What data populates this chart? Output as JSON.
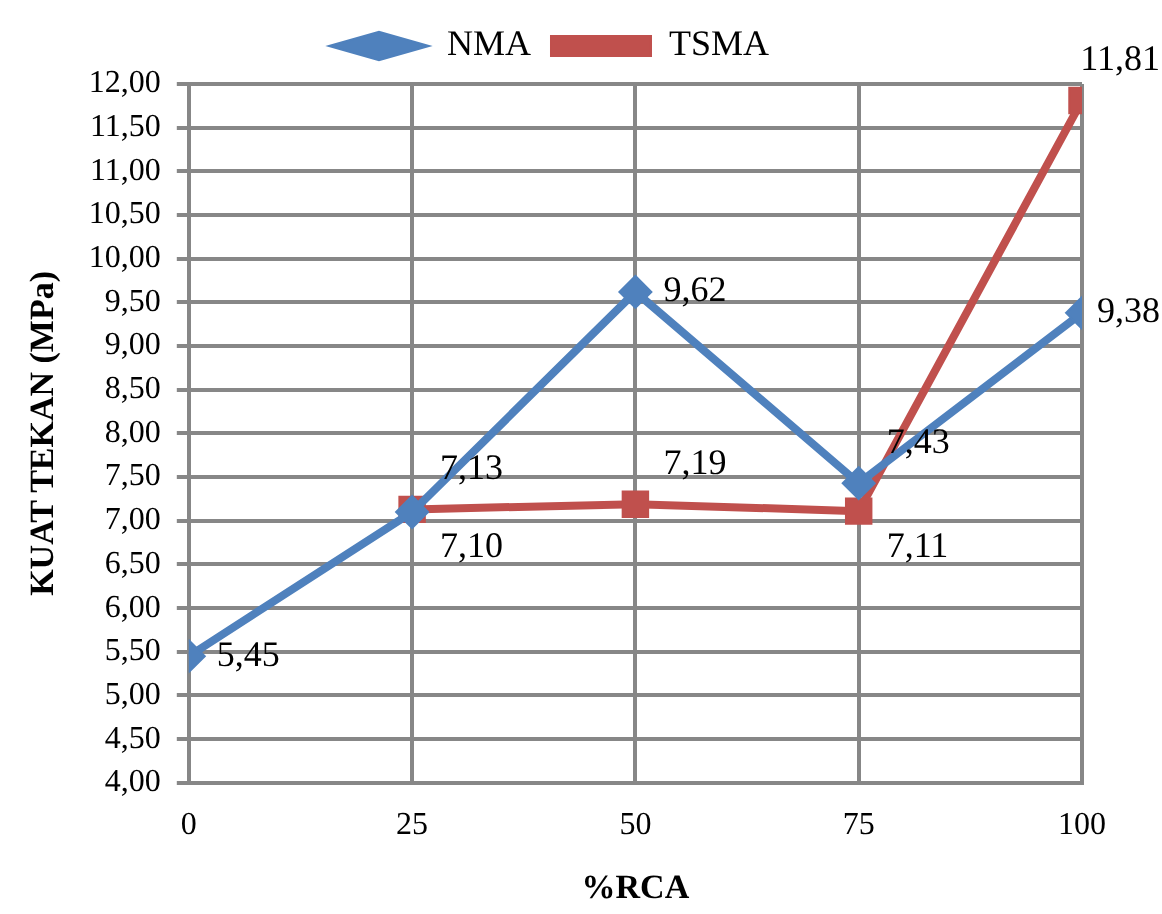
{
  "chart_data": {
    "type": "line",
    "xlabel": "%RCA",
    "ylabel": "KUAT TEKAN (MPa)",
    "x": [
      0,
      25,
      50,
      75,
      100
    ],
    "xlim": [
      0,
      100
    ],
    "xticks": [
      0,
      25,
      50,
      75,
      100
    ],
    "ylim": [
      4,
      12
    ],
    "yticks": [
      {
        "value": 4,
        "label": "4,00"
      },
      {
        "value": 4.5,
        "label": "4,50"
      },
      {
        "value": 5,
        "label": "5,00"
      },
      {
        "value": 5.5,
        "label": "5,50"
      },
      {
        "value": 6,
        "label": "6,00"
      },
      {
        "value": 6.5,
        "label": "6,50"
      },
      {
        "value": 7,
        "label": "7,00"
      },
      {
        "value": 7.5,
        "label": "7,50"
      },
      {
        "value": 8,
        "label": "8,00"
      },
      {
        "value": 8.5,
        "label": "8,50"
      },
      {
        "value": 9,
        "label": "9,00"
      },
      {
        "value": 9.5,
        "label": "9,50"
      },
      {
        "value": 10,
        "label": "10,00"
      },
      {
        "value": 10.5,
        "label": "10,50"
      },
      {
        "value": 11,
        "label": "11,00"
      },
      {
        "value": 11.5,
        "label": "11,50"
      },
      {
        "value": 12,
        "label": "12,00"
      }
    ],
    "grid": true,
    "legend": "top",
    "line_style": "solid",
    "series": [
      {
        "name": "NMA",
        "color": "#4f81bd",
        "marker": "diamond",
        "values": [
          5.45,
          7.1,
          9.62,
          7.43,
          9.38
        ],
        "value_labels": [
          "5,45",
          "7,10",
          "9,62",
          "7,43",
          "9,38"
        ]
      },
      {
        "name": "TSMA",
        "color": "#c0504d",
        "marker": "square",
        "values": [
          null,
          7.13,
          7.19,
          7.11,
          11.81
        ],
        "value_labels": [
          null,
          "7,13",
          "7,19",
          "7,11",
          "11,81"
        ]
      }
    ]
  }
}
